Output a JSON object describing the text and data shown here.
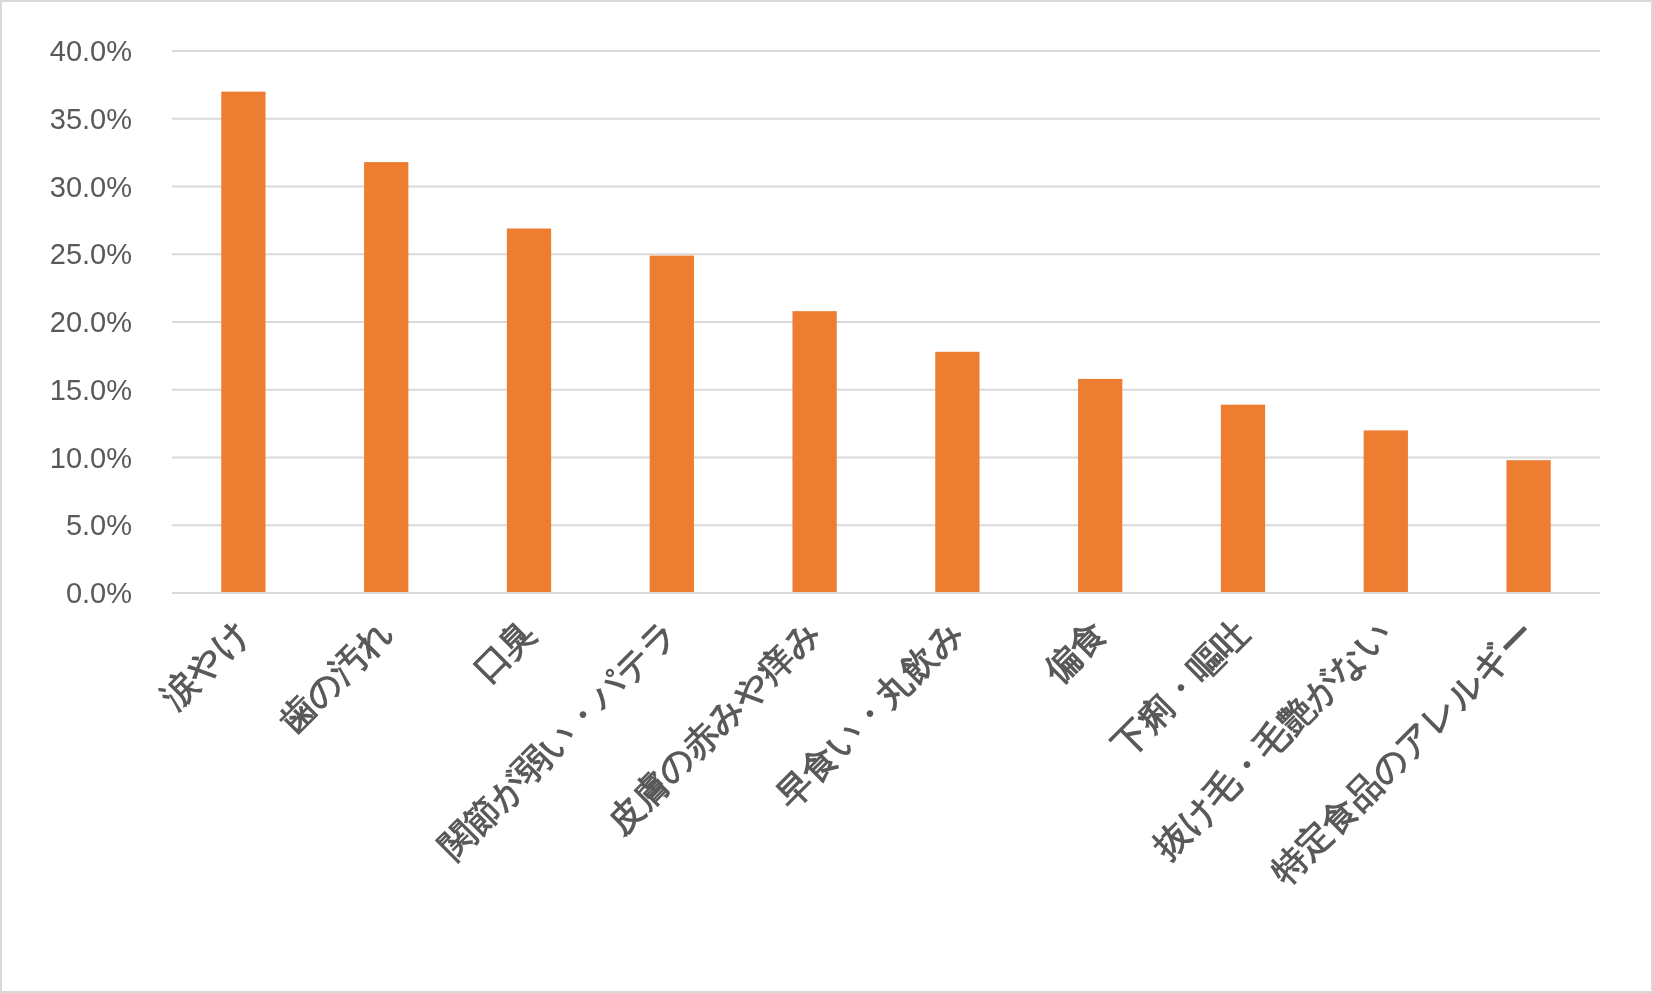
{
  "chart_data": {
    "type": "bar",
    "categories": [
      "涙やけ",
      "歯の汚れ",
      "口臭",
      "関節が弱い・パテラ",
      "皮膚の赤みや痒み",
      "早食い・丸飲み",
      "偏食",
      "下痢・嘔吐",
      "抜け毛・毛艶がない",
      "特定食品のアレルギー"
    ],
    "values": [
      37.0,
      31.8,
      26.9,
      24.9,
      20.8,
      17.8,
      15.8,
      13.9,
      12.0,
      9.8
    ],
    "color": "#ed7d31",
    "ylim": [
      0,
      40
    ],
    "yticks": [
      {
        "value": 0,
        "label": "0.0%"
      },
      {
        "value": 5,
        "label": "5.0%"
      },
      {
        "value": 10,
        "label": "10.0%"
      },
      {
        "value": 15,
        "label": "15.0%"
      },
      {
        "value": 20,
        "label": "20.0%"
      },
      {
        "value": 25,
        "label": "25.0%"
      },
      {
        "value": 30,
        "label": "30.0%"
      },
      {
        "value": 35,
        "label": "35.0%"
      },
      {
        "value": 40,
        "label": "40.0%"
      }
    ],
    "grid": "y"
  }
}
